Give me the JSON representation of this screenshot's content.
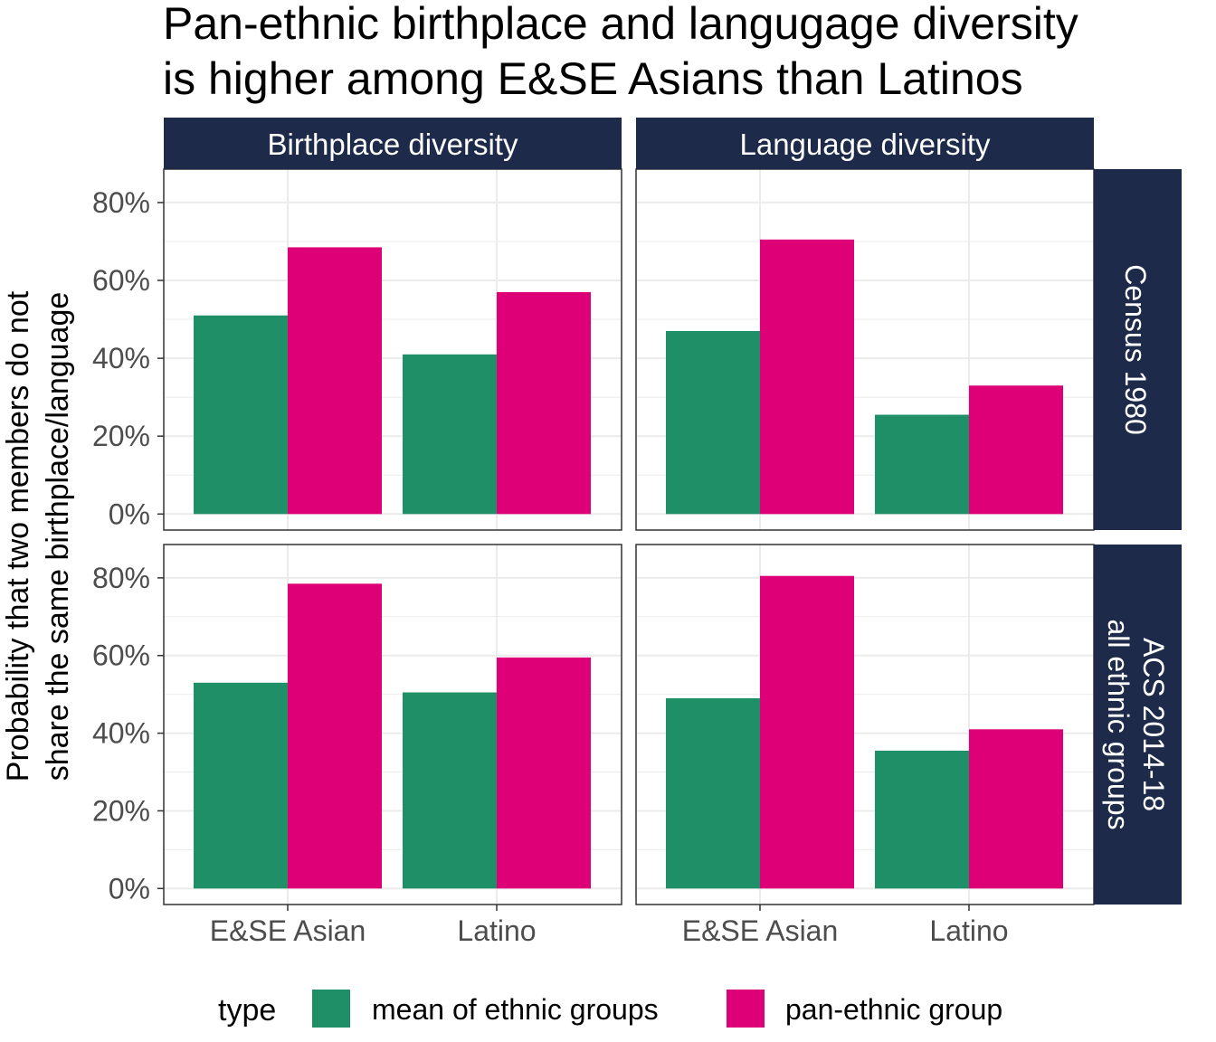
{
  "chart_data": {
    "type": "bar",
    "title_lines": [
      "Pan-ethnic birthplace and langugage diversity",
      "is higher among E&SE Asians than Latinos"
    ],
    "ylabel_lines": [
      "Probability that two members do not",
      "share the same birthplace/language"
    ],
    "xlabel": "",
    "categories": [
      "E&SE Asian",
      "Latino"
    ],
    "y_ticks": [
      "0%",
      "20%",
      "40%",
      "60%",
      "80%"
    ],
    "ylim": [
      0,
      84
    ],
    "grid": true,
    "legend": {
      "position": "bottom",
      "title": "type",
      "items": [
        {
          "name": "mean of ethnic groups",
          "color": "#1E8F67"
        },
        {
          "name": "pan-ethnic group",
          "color": "#DE0077"
        }
      ]
    },
    "columns": [
      {
        "label": "Birthplace diversity"
      },
      {
        "label": "Language diversity"
      }
    ],
    "rows": [
      {
        "label_lines": [
          "Census 1980"
        ]
      },
      {
        "label_lines": [
          "ACS 2014-18",
          "all ethnic groups"
        ]
      }
    ],
    "panels": [
      {
        "row": 0,
        "col": 0,
        "series": [
          {
            "name": "mean of ethnic groups",
            "values": [
              51,
              41
            ]
          },
          {
            "name": "pan-ethnic group",
            "values": [
              68.5,
              57
            ]
          }
        ]
      },
      {
        "row": 0,
        "col": 1,
        "series": [
          {
            "name": "mean of ethnic groups",
            "values": [
              47,
              25.5
            ]
          },
          {
            "name": "pan-ethnic group",
            "values": [
              70.5,
              33
            ]
          }
        ]
      },
      {
        "row": 1,
        "col": 0,
        "series": [
          {
            "name": "mean of ethnic groups",
            "values": [
              53,
              50.5
            ]
          },
          {
            "name": "pan-ethnic group",
            "values": [
              78.5,
              59.5
            ]
          }
        ]
      },
      {
        "row": 1,
        "col": 1,
        "series": [
          {
            "name": "mean of ethnic groups",
            "values": [
              49,
              35.5
            ]
          },
          {
            "name": "pan-ethnic group",
            "values": [
              80.5,
              41
            ]
          }
        ]
      }
    ],
    "colors": {
      "strip_bg": "#1E2A4A",
      "strip_text": "#FFFFFF",
      "panel_border": "#333333",
      "grid": "#EBEBEB",
      "tick_text": "#4D4D4D"
    }
  }
}
